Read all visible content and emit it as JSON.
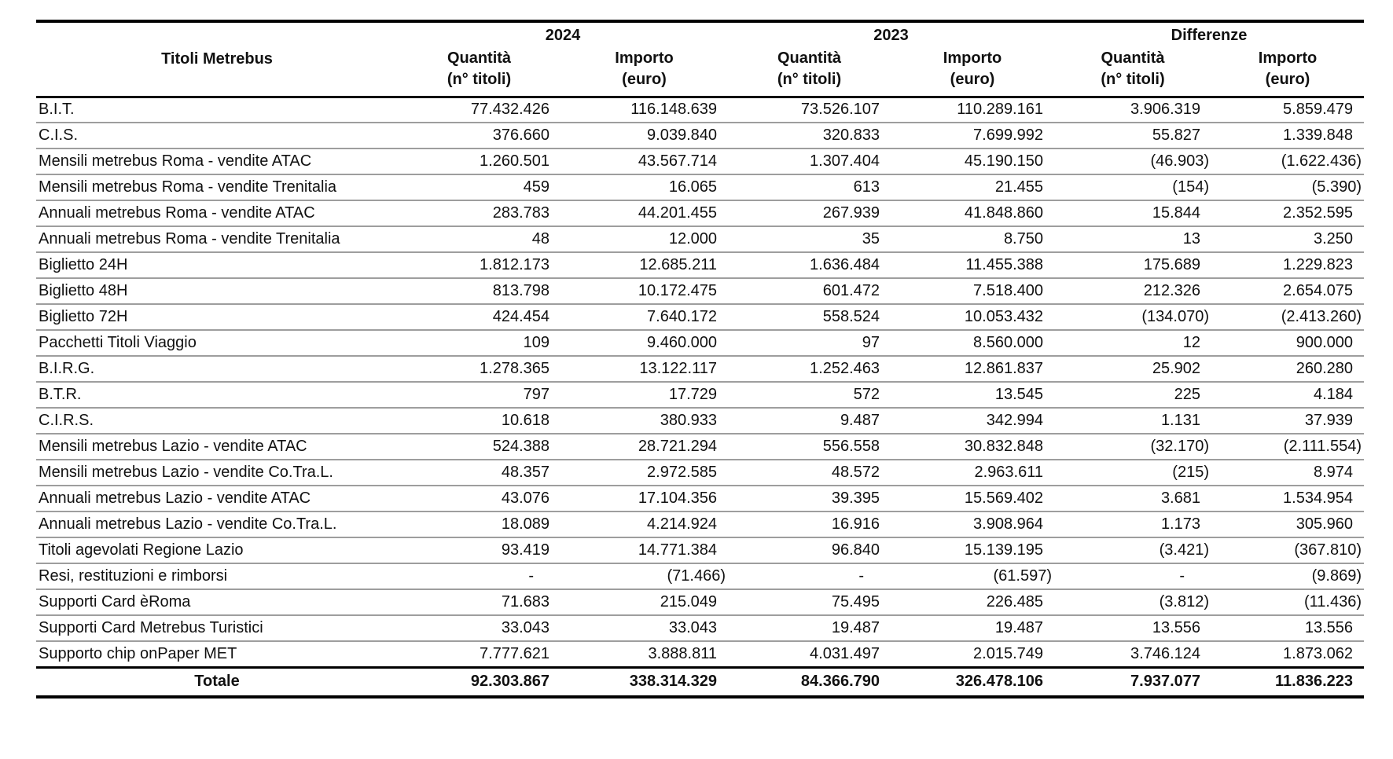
{
  "table": {
    "header": {
      "row_label": "Titoli Metrebus",
      "groups": [
        "2024",
        "2023",
        "Differenze"
      ],
      "quantity": {
        "line1": "Quantità",
        "line2": "(n° titoli)"
      },
      "amount": {
        "line1": "Importo",
        "line2": "(euro)"
      }
    },
    "rows": [
      {
        "label": "B.I.T.",
        "values": [
          "77.432.426",
          "116.148.639",
          "73.526.107",
          "110.289.161",
          "3.906.319",
          "5.859.479"
        ]
      },
      {
        "label": "C.I.S.",
        "values": [
          "376.660",
          "9.039.840",
          "320.833",
          "7.699.992",
          "55.827",
          "1.339.848"
        ]
      },
      {
        "label": "Mensili metrebus Roma - vendite ATAC",
        "values": [
          "1.260.501",
          "43.567.714",
          "1.307.404",
          "45.190.150",
          "(46.903)",
          "(1.622.436)"
        ]
      },
      {
        "label": "Mensili metrebus Roma - vendite Trenitalia",
        "values": [
          "459",
          "16.065",
          "613",
          "21.455",
          "(154)",
          "(5.390)"
        ]
      },
      {
        "label": "Annuali metrebus Roma - vendite ATAC",
        "values": [
          "283.783",
          "44.201.455",
          "267.939",
          "41.848.860",
          "15.844",
          "2.352.595"
        ]
      },
      {
        "label": "Annuali metrebus Roma - vendite Trenitalia",
        "values": [
          "48",
          "12.000",
          "35",
          "8.750",
          "13",
          "3.250"
        ]
      },
      {
        "label": "Biglietto 24H",
        "values": [
          "1.812.173",
          "12.685.211",
          "1.636.484",
          "11.455.388",
          "175.689",
          "1.229.823"
        ]
      },
      {
        "label": "Biglietto 48H",
        "values": [
          "813.798",
          "10.172.475",
          "601.472",
          "7.518.400",
          "212.326",
          "2.654.075"
        ]
      },
      {
        "label": "Biglietto 72H",
        "values": [
          "424.454",
          "7.640.172",
          "558.524",
          "10.053.432",
          "(134.070)",
          "(2.413.260)"
        ]
      },
      {
        "label": "Pacchetti Titoli Viaggio",
        "values": [
          "109",
          "9.460.000",
          "97",
          "8.560.000",
          "12",
          "900.000"
        ]
      },
      {
        "label": "B.I.R.G.",
        "values": [
          "1.278.365",
          "13.122.117",
          "1.252.463",
          "12.861.837",
          "25.902",
          "260.280"
        ]
      },
      {
        "label": "B.T.R.",
        "values": [
          "797",
          "17.729",
          "572",
          "13.545",
          "225",
          "4.184"
        ]
      },
      {
        "label": "C.I.R.S.",
        "values": [
          "10.618",
          "380.933",
          "9.487",
          "342.994",
          "1.131",
          "37.939"
        ]
      },
      {
        "label": "Mensili metrebus Lazio - vendite ATAC",
        "values": [
          "524.388",
          "28.721.294",
          "556.558",
          "30.832.848",
          "(32.170)",
          "(2.111.554)"
        ]
      },
      {
        "label": "Mensili metrebus Lazio - vendite Co.Tra.L.",
        "values": [
          "48.357",
          "2.972.585",
          "48.572",
          "2.963.611",
          "(215)",
          "8.974"
        ]
      },
      {
        "label": "Annuali metrebus Lazio - vendite ATAC",
        "values": [
          "43.076",
          "17.104.356",
          "39.395",
          "15.569.402",
          "3.681",
          "1.534.954"
        ]
      },
      {
        "label": "Annuali metrebus Lazio - vendite Co.Tra.L.",
        "values": [
          "18.089",
          "4.214.924",
          "16.916",
          "3.908.964",
          "1.173",
          "305.960"
        ]
      },
      {
        "label": "Titoli agevolati Regione Lazio",
        "values": [
          "93.419",
          "14.771.384",
          "96.840",
          "15.139.195",
          "(3.421)",
          "(367.810)"
        ]
      },
      {
        "label": "Resi, restituzioni e rimborsi",
        "values": [
          "-",
          "(71.466)",
          "-",
          "(61.597)",
          "-",
          "(9.869)"
        ]
      },
      {
        "label": "Supporti Card èRoma",
        "values": [
          "71.683",
          "215.049",
          "75.495",
          "226.485",
          "(3.812)",
          "(11.436)"
        ]
      },
      {
        "label": "Supporti Card Metrebus Turistici",
        "values": [
          "33.043",
          "33.043",
          "19.487",
          "19.487",
          "13.556",
          "13.556"
        ]
      },
      {
        "label": "Supporto chip onPaper MET",
        "values": [
          "7.777.621",
          "3.888.811",
          "4.031.497",
          "2.015.749",
          "3.746.124",
          "1.873.062"
        ]
      }
    ],
    "total": {
      "label": "Totale",
      "values": [
        "92.303.867",
        "338.314.329",
        "84.366.790",
        "326.478.106",
        "7.937.077",
        "11.836.223"
      ]
    }
  },
  "colors": {
    "border_black": "#000000",
    "row_divider": "#9e9e9e",
    "text": "#111111",
    "background": "#ffffff"
  }
}
